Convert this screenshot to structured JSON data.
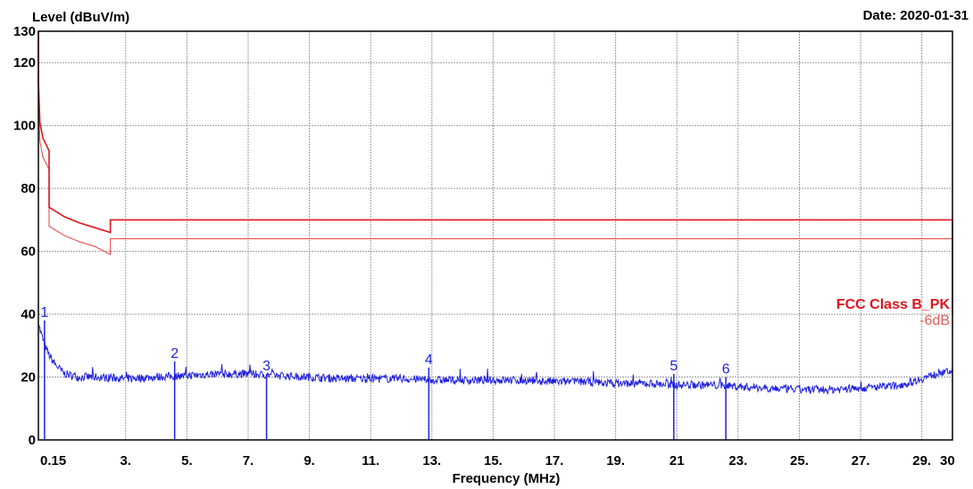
{
  "chart_data": {
    "type": "line",
    "title": "",
    "ylabel": "Level (dBuV/m)",
    "xlabel": "Frequency (MHz)",
    "date_label": "Date: 2020-01-31",
    "xlim": [
      0.15,
      30
    ],
    "ylim": [
      0,
      130
    ],
    "x_ticks": [
      {
        "value": 0.15,
        "label": "0.15"
      },
      {
        "value": 3,
        "label": "3."
      },
      {
        "value": 5,
        "label": "5."
      },
      {
        "value": 7,
        "label": "7."
      },
      {
        "value": 9,
        "label": "9."
      },
      {
        "value": 11,
        "label": "11."
      },
      {
        "value": 13,
        "label": "13."
      },
      {
        "value": 15,
        "label": "15."
      },
      {
        "value": 17,
        "label": "17."
      },
      {
        "value": 19,
        "label": "19."
      },
      {
        "value": 21,
        "label": "21"
      },
      {
        "value": 23,
        "label": "23."
      },
      {
        "value": 25,
        "label": "25."
      },
      {
        "value": 27,
        "label": "27."
      },
      {
        "value": 29,
        "label": "29."
      },
      {
        "value": 30,
        "label": "30"
      }
    ],
    "y_ticks": [
      0,
      20,
      40,
      60,
      80,
      100,
      120,
      130
    ],
    "grid": true,
    "colors": {
      "limit": "#e0141e",
      "limit_6db": "#e85a5a",
      "trace": "#1f1fe0",
      "grid": "#9a9a9a"
    },
    "limit_label": "FCC Class B_PK",
    "limit_offset_label": "-6dB",
    "limit_line": {
      "x": [
        0.15,
        0.15,
        0.2,
        0.3,
        0.5,
        0.5,
        1.0,
        1.5,
        2.0,
        2.5,
        2.5,
        30,
        30
      ],
      "y": [
        130,
        114,
        101,
        96,
        92,
        74,
        71,
        69,
        67.5,
        66,
        70,
        70,
        40
      ]
    },
    "limit_line_6db": {
      "x": [
        0.15,
        0.2,
        0.3,
        0.5,
        0.5,
        1.0,
        1.5,
        2.0,
        2.5,
        2.5,
        30,
        30
      ],
      "y": [
        108,
        95,
        90,
        86,
        68,
        65,
        63,
        61.5,
        59,
        64,
        64,
        34
      ]
    },
    "peak_trace": {
      "x": [
        0.15,
        0.2,
        0.3,
        0.4,
        0.5,
        0.7,
        1.0,
        1.5,
        2.0,
        3.0,
        4.0,
        5.0,
        6.0,
        7.0,
        8.0,
        9.0,
        10.0,
        11.0,
        12.0,
        13.0,
        14.0,
        15.0,
        16.0,
        17.0,
        18.0,
        19.0,
        20.0,
        21.0,
        22.0,
        23.0,
        24.0,
        25.0,
        26.0,
        27.0,
        28.0,
        28.5,
        29.0,
        29.5,
        30.0
      ],
      "y": [
        38,
        35,
        32,
        29,
        27,
        24,
        21,
        20,
        20,
        19.5,
        20,
        20.5,
        21,
        21,
        20.5,
        20,
        19.5,
        19.5,
        19.5,
        19,
        19,
        19,
        19,
        18.5,
        18.5,
        18,
        18,
        17.5,
        17.5,
        17,
        16.5,
        16,
        16,
        16.5,
        17,
        18,
        19.5,
        21,
        22
      ]
    },
    "markers": [
      {
        "label": "1",
        "freq": 0.35,
        "level": 38
      },
      {
        "label": "2",
        "freq": 4.6,
        "level": 25
      },
      {
        "label": "3",
        "freq": 7.6,
        "level": 21
      },
      {
        "label": "4",
        "freq": 12.9,
        "level": 23
      },
      {
        "label": "5",
        "freq": 20.9,
        "level": 21
      },
      {
        "label": "6",
        "freq": 22.6,
        "level": 20
      }
    ]
  }
}
